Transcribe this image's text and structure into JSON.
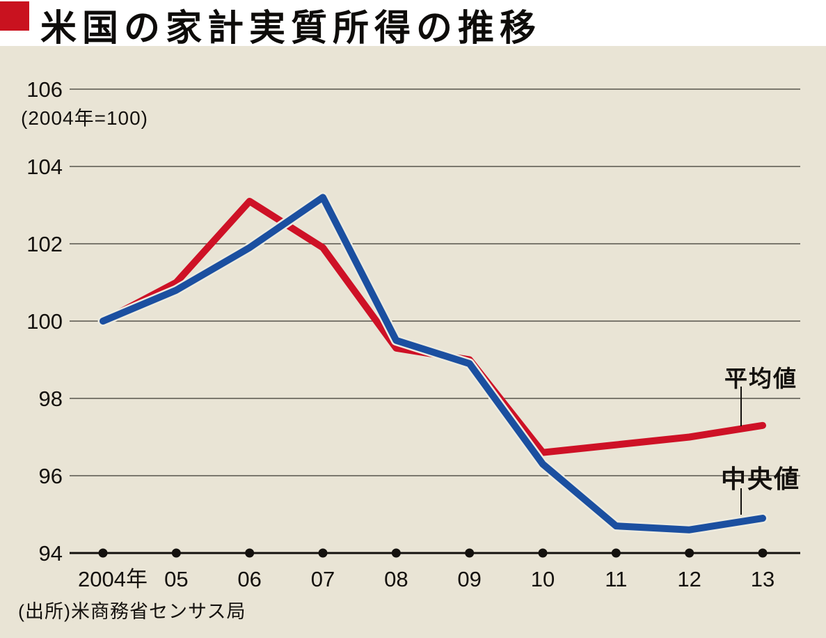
{
  "header": {
    "title": "米国の家計実質所得の推移"
  },
  "colors": {
    "accent_red": "#ce1126",
    "line_blue": "#1b4fa0",
    "panel_background": "#e9e4d5",
    "gridline": "#57544c",
    "axis_black": "#14110e"
  },
  "chart_data": {
    "type": "line",
    "title": "米国の家計実質所得の推移",
    "subtitle": "(2004年=100)",
    "source": "(出所)米商務省センサス局",
    "categories": [
      "2004年",
      "05",
      "06",
      "07",
      "08",
      "09",
      "10",
      "11",
      "12",
      "13"
    ],
    "series": [
      {
        "name": "平均値",
        "color": "#ce1126",
        "values": [
          100.0,
          101.0,
          103.1,
          101.9,
          99.3,
          99.0,
          96.6,
          96.8,
          97.0,
          97.3
        ]
      },
      {
        "name": "中央値",
        "color": "#1b4fa0",
        "values": [
          100.0,
          100.8,
          101.9,
          103.2,
          99.5,
          98.9,
          96.3,
          94.7,
          94.6,
          94.9
        ]
      }
    ],
    "ylim": [
      94,
      106
    ],
    "yticks": [
      106,
      104,
      102,
      100,
      98,
      96,
      94
    ],
    "grid": true,
    "legend_position": "inline-right-labels-with-leader-lines"
  }
}
